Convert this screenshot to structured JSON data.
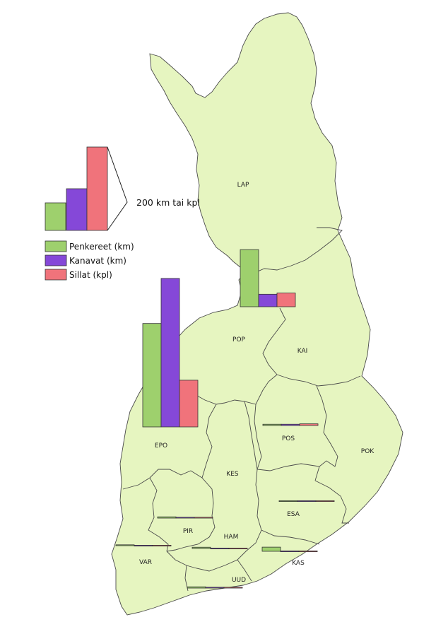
{
  "colors": {
    "land": "#e6f5c0",
    "penkereet": "#9ed06d",
    "kanavat": "#8548d8",
    "sillat": "#f0737b"
  },
  "legend": {
    "items": [
      {
        "label": "Penkereet (km)",
        "color": "#9ed06d"
      },
      {
        "label": "Kanavat (km)",
        "color": "#8548d8"
      },
      {
        "label": "Sillat (kpl)",
        "color": "#f0737b"
      }
    ],
    "scale_label": "200 km tai kpl",
    "scale_value": 200
  },
  "regions": [
    {
      "code": "LAP"
    },
    {
      "code": "POP"
    },
    {
      "code": "KAI"
    },
    {
      "code": "EPO"
    },
    {
      "code": "POS"
    },
    {
      "code": "POK"
    },
    {
      "code": "KES"
    },
    {
      "code": "ESA"
    },
    {
      "code": "PIR"
    },
    {
      "code": "HAM"
    },
    {
      "code": "VAR"
    },
    {
      "code": "KAS"
    },
    {
      "code": "UUD"
    }
  ],
  "chart_data": {
    "type": "bar",
    "categories": [
      "LAP",
      "POP",
      "KAI",
      "EPO",
      "POS",
      "POK",
      "KES",
      "ESA",
      "PIR",
      "HAM",
      "VAR",
      "KAS",
      "UUD"
    ],
    "series": [
      {
        "name": "Penkereet (km)",
        "values": [
          0,
          137,
          0,
          248,
          3,
          0,
          0,
          1,
          3,
          3,
          2,
          10,
          3
        ]
      },
      {
        "name": "Kanavat (km)",
        "values": [
          0,
          30,
          0,
          356,
          3,
          0,
          0,
          1,
          2,
          1,
          1,
          1,
          2
        ]
      },
      {
        "name": "Sillat (kpl)",
        "values": [
          0,
          33,
          0,
          112,
          4,
          0,
          0,
          1,
          2,
          1,
          1,
          1,
          2
        ]
      }
    ]
  }
}
